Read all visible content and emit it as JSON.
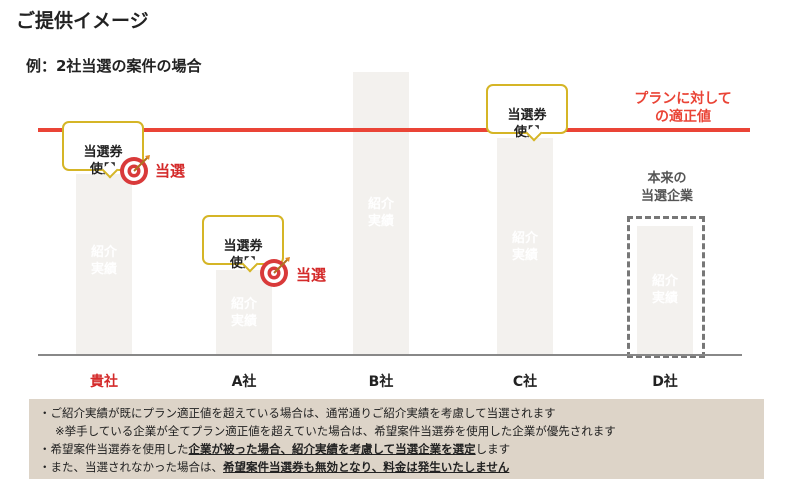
{
  "header": {
    "title": "ご提供イメージ",
    "subtitle": "例：2社当選の案件の場合"
  },
  "plan_line": {
    "label": "プランに対して\nの適正値",
    "color": "#ea4436"
  },
  "bar_label": "紹介\n実績",
  "companies": [
    {
      "name": "貴社",
      "name_color": "#d42a2a",
      "relative_height": 0.62,
      "voucher_used": true,
      "won": true
    },
    {
      "name": "A社",
      "relative_height": 0.3,
      "voucher_used": true,
      "won": true
    },
    {
      "name": "B社",
      "relative_height": 1.0,
      "voucher_used": false,
      "won": false
    },
    {
      "name": "C社",
      "relative_height": 0.78,
      "voucher_used": true,
      "won": false
    },
    {
      "name": "D社",
      "relative_height": 0.46,
      "voucher_used": false,
      "won": false,
      "original_winner": true
    }
  ],
  "bubble_text": "当選券\n使用",
  "won_text": "当選",
  "d_label": "本来の\n当選企業",
  "notes": {
    "line1": "・ご紹介実績が既にプラン適正値を超えている場合は、通常通りご紹介実績を考慮して当選されます",
    "line2": "※挙手している企業が全てプラン適正値を超えていた場合は、希望案件当選券を使用した企業が優先されます",
    "line3_a": "・希望案件当選券を使用した",
    "line3_b": "企業が被った場合、紹介実績を考慮して当選企業を選定",
    "line3_c": "します",
    "line4_a": "・また、当選されなかった場合は、",
    "line4_b": "希望案件当選券も無効となり、料金は発生いたしません"
  },
  "colors": {
    "accent_red": "#ea4436",
    "bubble_border": "#d5b526",
    "bar": "#f3f1ee",
    "notes_bg": "#ddd4c8"
  }
}
